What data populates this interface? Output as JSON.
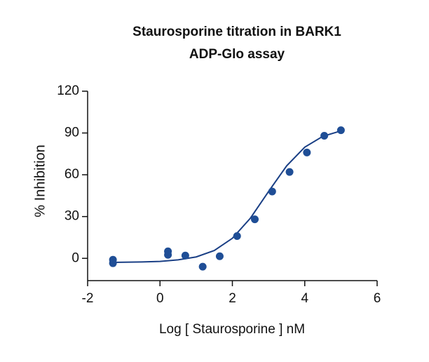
{
  "chart_data": {
    "type": "scatter",
    "title": [
      "Staurosporine titration in BARK1",
      "ADP-Glo assay"
    ],
    "x_label": "Log [ Staurosporine ] nM",
    "y_label": "% Inhibition",
    "xlim": [
      -2,
      6
    ],
    "xticks": [
      -2,
      0,
      2,
      4,
      6
    ],
    "ylim": [
      -16,
      120
    ],
    "yticks": [
      0,
      30,
      60,
      90,
      120
    ],
    "series": [
      {
        "name": "data",
        "color": "#1f4e96",
        "x": [
          -1.3,
          -1.3,
          0.22,
          0.22,
          0.7,
          1.18,
          1.65,
          2.13,
          2.62,
          3.1,
          3.58,
          4.06,
          4.54,
          5.0
        ],
        "values": [
          -1,
          -3.5,
          5,
          2.5,
          2,
          -6,
          1.5,
          16,
          28,
          48,
          62,
          76,
          88,
          92
        ]
      },
      {
        "name": "fit",
        "color": "#1a3f85",
        "x": [
          -1.3,
          -0.5,
          0,
          0.5,
          1,
          1.5,
          2,
          2.5,
          3,
          3.5,
          4,
          4.5,
          5
        ],
        "values": [
          -2.9,
          -2.6,
          -2.2,
          -1.1,
          1.0,
          5.6,
          14.4,
          28.9,
          48.0,
          66.4,
          79.8,
          87.6,
          91.5
        ]
      }
    ]
  }
}
